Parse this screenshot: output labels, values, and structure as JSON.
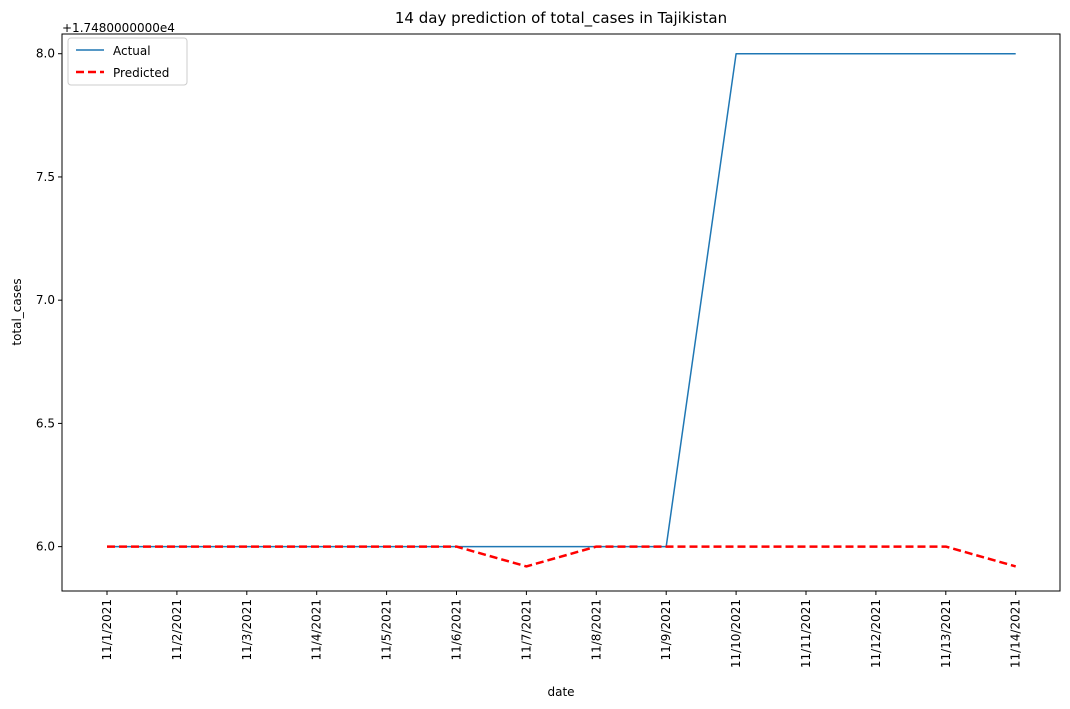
{
  "chart_data": {
    "type": "line",
    "title": "14 day prediction of total_cases in Tajikistan",
    "xlabel": "date",
    "ylabel": "total_cases",
    "y_offset_label": "+1.7480000000e4",
    "y_offset": 17480,
    "ylim": [
      5.82,
      8.08
    ],
    "y_ticks": [
      6.0,
      6.5,
      7.0,
      7.5,
      8.0
    ],
    "y_tick_labels": [
      "6.0",
      "6.5",
      "7.0",
      "7.5",
      "8.0"
    ],
    "categories": [
      "11/1/2021",
      "11/2/2021",
      "11/3/2021",
      "11/4/2021",
      "11/5/2021",
      "11/6/2021",
      "11/7/2021",
      "11/8/2021",
      "11/9/2021",
      "11/10/2021",
      "11/11/2021",
      "11/12/2021",
      "11/13/2021",
      "11/14/2021"
    ],
    "legend_position": "top-left",
    "grid": false,
    "series": [
      {
        "name": "Actual",
        "color": "#1f77b4",
        "style": "solid",
        "values": [
          17486,
          17486,
          17486,
          17486,
          17486,
          17486,
          17486,
          17486,
          17486,
          17488,
          17488,
          17488,
          17488,
          17488
        ]
      },
      {
        "name": "Predicted",
        "color": "#ff0000",
        "style": "dashed",
        "values": [
          17486,
          17486,
          17486,
          17486,
          17486,
          17486,
          17485.92,
          17486,
          17486,
          17486,
          17486,
          17486,
          17486,
          17485.92
        ]
      }
    ]
  }
}
